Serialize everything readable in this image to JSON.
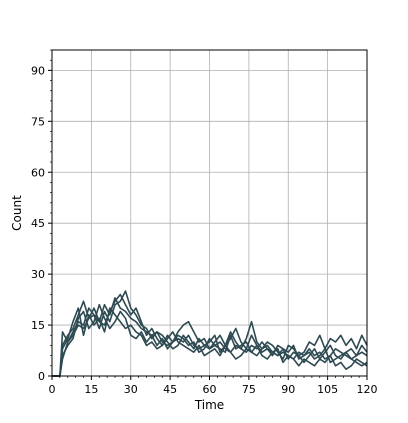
{
  "chart_data": {
    "type": "line",
    "title": "",
    "xlabel": "Time",
    "ylabel": "Count",
    "xlim": [
      0,
      120
    ],
    "ylim": [
      0,
      96
    ],
    "x_ticks": [
      0,
      15,
      30,
      45,
      60,
      75,
      90,
      105,
      120
    ],
    "y_ticks": [
      0,
      15,
      30,
      45,
      60,
      75,
      90
    ],
    "grid": true,
    "line_color": "#2e4a52",
    "series": [
      {
        "x": [
          0,
          3,
          4,
          6,
          8,
          10,
          12,
          14,
          16,
          18,
          20,
          22,
          24,
          26,
          28,
          30,
          32,
          34,
          36,
          38,
          40,
          42,
          44,
          46,
          48,
          50,
          52,
          54,
          56,
          58,
          60,
          62,
          64,
          66,
          68,
          70,
          72,
          74,
          76,
          78,
          80,
          82,
          84,
          86,
          88,
          90,
          92,
          94,
          96,
          98,
          100,
          102,
          104,
          106,
          108,
          110,
          112,
          114,
          116,
          118,
          120
        ],
        "values": [
          0,
          0,
          13,
          10,
          12,
          15,
          14,
          17,
          18,
          16,
          21,
          18,
          23,
          20,
          19,
          17,
          16,
          14,
          13,
          12,
          13,
          10,
          9,
          10,
          11,
          10,
          12,
          9,
          8,
          9,
          8,
          9,
          10,
          8,
          7,
          9,
          8,
          7,
          9,
          8,
          10,
          8,
          7,
          6,
          7,
          6,
          5,
          7,
          6,
          8,
          6,
          7,
          5,
          6,
          8,
          7,
          6,
          5,
          6,
          7,
          6
        ]
      },
      {
        "x": [
          0,
          3,
          4,
          6,
          8,
          10,
          12,
          14,
          16,
          18,
          20,
          22,
          24,
          26,
          28,
          30,
          32,
          34,
          36,
          38,
          40,
          42,
          44,
          46,
          48,
          50,
          52,
          54,
          56,
          58,
          60,
          62,
          64,
          66,
          68,
          70,
          72,
          74,
          76,
          78,
          80,
          82,
          84,
          86,
          88,
          90,
          92,
          94,
          96,
          98,
          100,
          102,
          104,
          106,
          108,
          110,
          112,
          114,
          116,
          118,
          120
        ],
        "values": [
          0,
          0,
          9,
          12,
          14,
          18,
          22,
          17,
          20,
          16,
          15,
          19,
          22,
          24,
          21,
          18,
          20,
          16,
          12,
          14,
          11,
          9,
          12,
          10,
          13,
          15,
          16,
          13,
          10,
          11,
          8,
          10,
          12,
          9,
          11,
          14,
          10,
          8,
          12,
          9,
          7,
          8,
          6,
          9,
          8,
          5,
          7,
          6,
          4,
          6,
          8,
          5,
          7,
          9,
          6,
          5,
          7,
          8,
          6,
          9,
          7
        ]
      },
      {
        "x": [
          0,
          3,
          4,
          6,
          8,
          10,
          12,
          14,
          16,
          18,
          20,
          22,
          24,
          26,
          28,
          30,
          32,
          34,
          36,
          38,
          40,
          42,
          44,
          46,
          48,
          50,
          52,
          54,
          56,
          58,
          60,
          62,
          64,
          66,
          68,
          70,
          72,
          74,
          76,
          78,
          80,
          82,
          84,
          86,
          88,
          90,
          92,
          94,
          96,
          98,
          100,
          102,
          104,
          106,
          108,
          110,
          112,
          114,
          116,
          118,
          120
        ],
        "values": [
          0,
          0,
          5,
          10,
          13,
          16,
          15,
          20,
          18,
          14,
          19,
          16,
          21,
          22,
          25,
          20,
          18,
          15,
          14,
          11,
          13,
          12,
          10,
          8,
          9,
          12,
          10,
          8,
          11,
          9,
          10,
          12,
          7,
          9,
          13,
          10,
          8,
          11,
          16,
          10,
          8,
          9,
          7,
          6,
          8,
          7,
          9,
          5,
          6,
          7,
          5,
          6,
          8,
          4,
          5,
          6,
          7,
          5,
          4,
          3,
          4
        ]
      },
      {
        "x": [
          0,
          3,
          4,
          6,
          8,
          10,
          12,
          14,
          16,
          18,
          20,
          22,
          24,
          26,
          28,
          30,
          32,
          34,
          36,
          38,
          40,
          42,
          44,
          46,
          48,
          50,
          52,
          54,
          56,
          58,
          60,
          62,
          64,
          66,
          68,
          70,
          72,
          74,
          76,
          78,
          80,
          82,
          84,
          86,
          88,
          90,
          92,
          94,
          96,
          98,
          100,
          102,
          104,
          106,
          108,
          110,
          112,
          114,
          116,
          118,
          120
        ],
        "values": [
          0,
          0,
          8,
          11,
          16,
          20,
          12,
          18,
          15,
          17,
          13,
          20,
          18,
          16,
          14,
          15,
          13,
          12,
          9,
          10,
          8,
          9,
          11,
          13,
          10,
          9,
          8,
          7,
          9,
          6,
          7,
          8,
          6,
          9,
          7,
          5,
          6,
          8,
          7,
          9,
          6,
          5,
          7,
          8,
          4,
          6,
          5,
          3,
          5,
          4,
          3,
          5,
          4,
          6,
          3,
          4,
          2,
          3,
          5,
          4,
          3
        ]
      },
      {
        "x": [
          0,
          3,
          4,
          6,
          8,
          10,
          12,
          14,
          16,
          18,
          20,
          22,
          24,
          26,
          28,
          30,
          32,
          34,
          36,
          38,
          40,
          42,
          44,
          46,
          48,
          50,
          52,
          54,
          56,
          58,
          60,
          62,
          64,
          66,
          68,
          70,
          72,
          74,
          76,
          78,
          80,
          82,
          84,
          86,
          88,
          90,
          92,
          94,
          96,
          98,
          100,
          102,
          104,
          106,
          108,
          110,
          112,
          114,
          116,
          118,
          120
        ],
        "values": [
          0,
          0,
          6,
          9,
          11,
          17,
          19,
          14,
          16,
          21,
          17,
          14,
          16,
          19,
          17,
          12,
          11,
          13,
          10,
          12,
          9,
          11,
          8,
          10,
          12,
          11,
          9,
          10,
          7,
          8,
          11,
          9,
          8,
          7,
          12,
          8,
          9,
          10,
          7,
          6,
          8,
          10,
          9,
          7,
          5,
          9,
          8,
          6,
          7,
          10,
          9,
          12,
          8,
          11,
          10,
          12,
          9,
          11,
          8,
          12,
          9
        ]
      }
    ]
  }
}
